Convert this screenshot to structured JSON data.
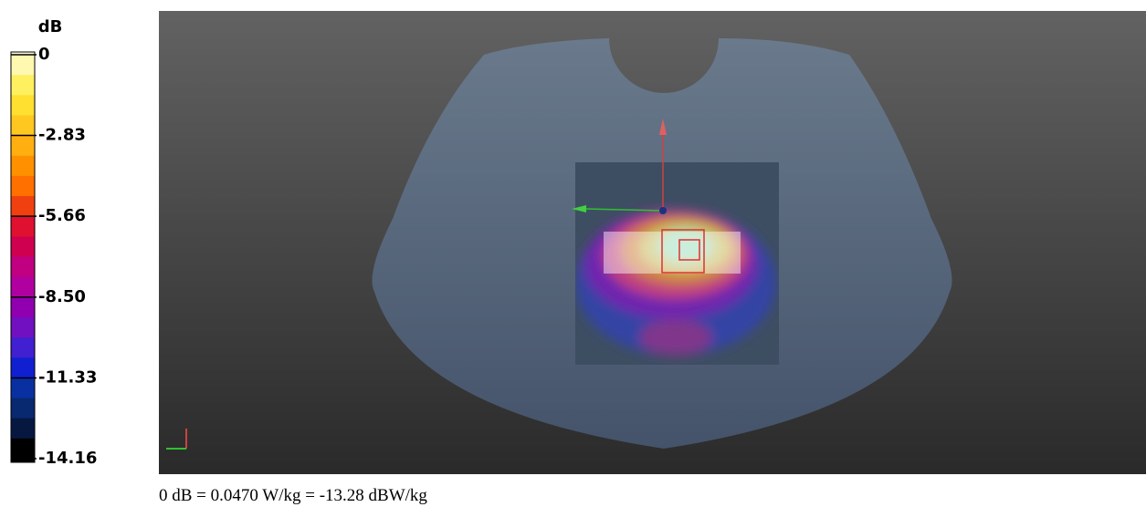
{
  "colorbar": {
    "unit": "dB",
    "ticks": [
      0,
      -2.83,
      -5.66,
      {
        "value": -8.5,
        "label": "-8.50"
      },
      -11.33,
      -14.16
    ],
    "colors": [
      "#fffce0",
      "#fff8b0",
      "#fff060",
      "#ffe030",
      "#ffc820",
      "#ffb010",
      "#ff9000",
      "#ff7000",
      "#f04010",
      "#e01030",
      "#d00050",
      "#c00080",
      "#b000a0",
      "#9000b0",
      "#7010c0",
      "#4020d0",
      "#1020d0",
      "#0830a0",
      "#082870",
      "#061840",
      "#000000"
    ]
  },
  "footer": "0 dB = 0.0470 W/kg = -13.28 dBW/kg"
}
